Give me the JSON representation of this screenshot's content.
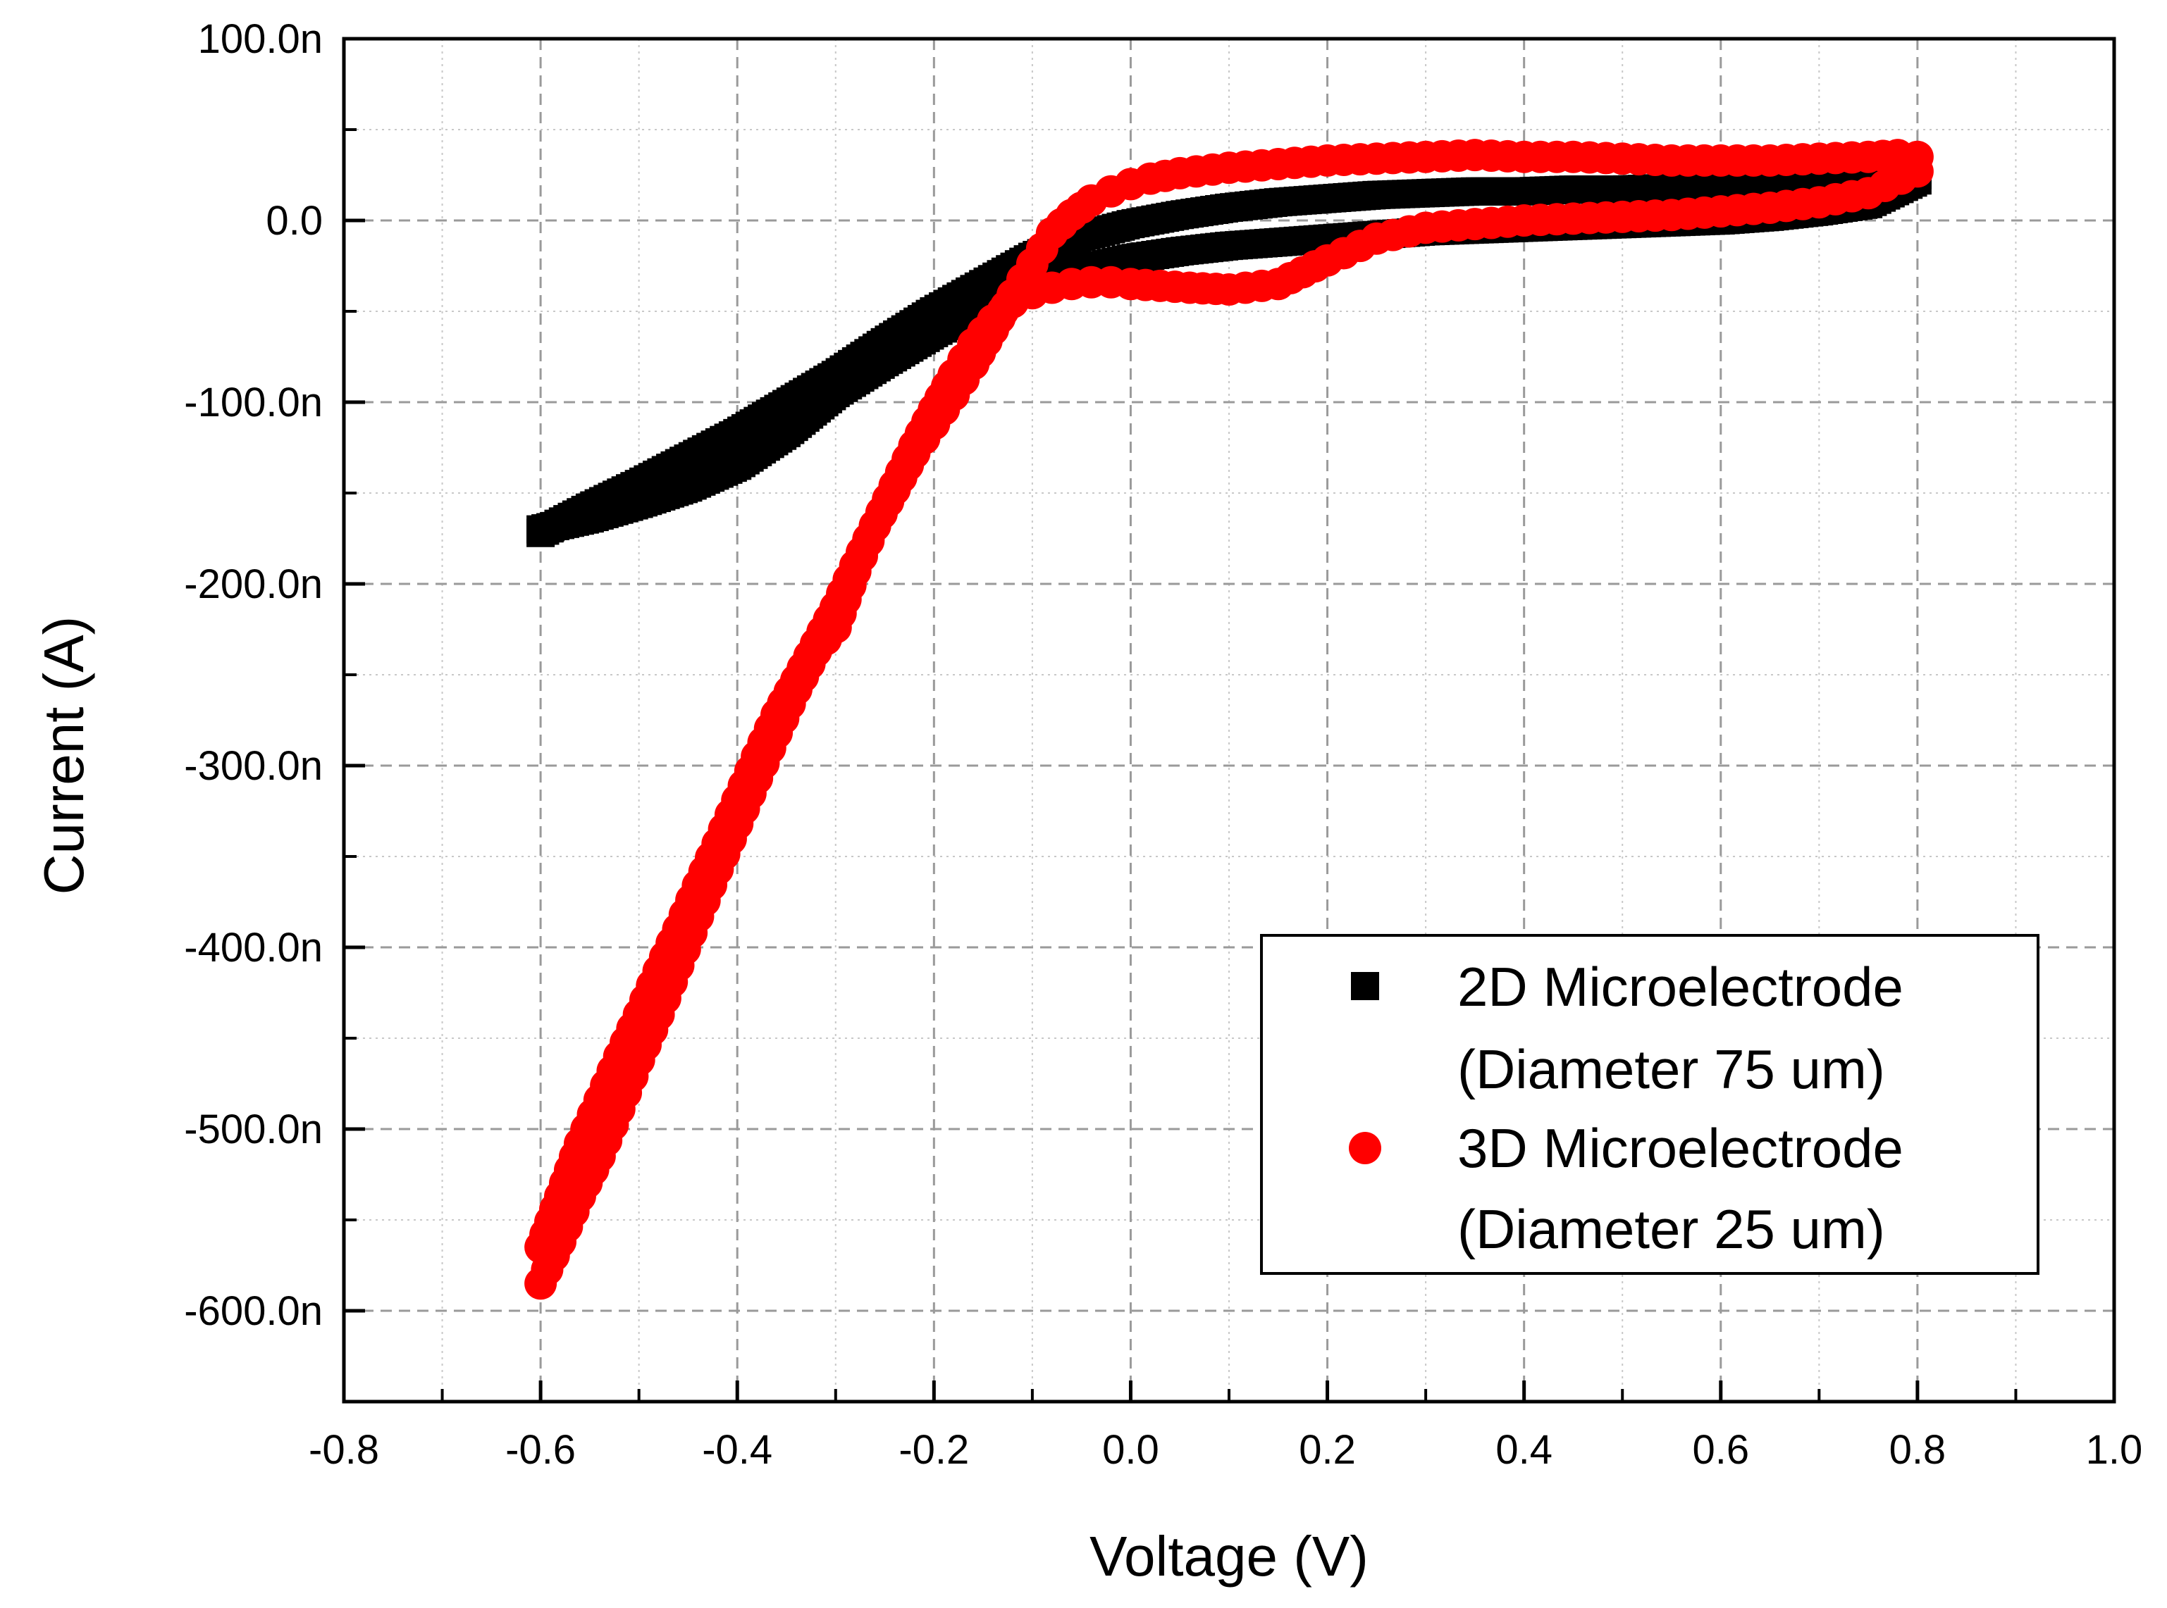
{
  "chart_data": {
    "type": "scatter",
    "title": "",
    "xlabel": "Voltage (V)",
    "ylabel": "Current (A)",
    "xlim": [
      -0.8,
      1.0
    ],
    "ylim": [
      -650,
      100
    ],
    "y_unit": "nA",
    "grid": true,
    "legend_position": "bottom-right",
    "x_ticks": [
      -0.8,
      -0.6,
      -0.4,
      -0.2,
      0.0,
      0.2,
      0.4,
      0.6,
      0.8,
      1.0
    ],
    "x_tick_labels": [
      "-0.8",
      "-0.6",
      "-0.4",
      "-0.2",
      "0.0",
      "0.2",
      "0.4",
      "0.6",
      "0.8",
      "1.0"
    ],
    "y_ticks": [
      100,
      0,
      -100,
      -200,
      -300,
      -400,
      -500,
      -600
    ],
    "y_tick_labels": [
      "100.0n",
      "0.0",
      "-100.0n",
      "-200.0n",
      "-300.0n",
      "-400.0n",
      "-500.0n",
      "-600.0n"
    ],
    "series": [
      {
        "name": "2D Microelectrode",
        "name_line2": "(Diameter 75 um)",
        "color": "#000000",
        "marker": "square",
        "x": [
          -0.6,
          -0.55,
          -0.5,
          -0.45,
          -0.4,
          -0.35,
          -0.3,
          -0.25,
          -0.2,
          -0.15,
          -0.1,
          -0.05,
          0.0,
          0.05,
          0.1,
          0.15,
          0.2,
          0.25,
          0.3,
          0.35,
          0.4,
          0.45,
          0.5,
          0.55,
          0.6,
          0.65,
          0.7,
          0.75,
          0.8,
          0.8,
          0.75,
          0.7,
          0.65,
          0.6,
          0.55,
          0.5,
          0.45,
          0.4,
          0.35,
          0.3,
          0.25,
          0.2,
          0.15,
          0.1,
          0.05,
          0.0,
          -0.05,
          -0.1,
          -0.15,
          -0.2,
          -0.25,
          -0.3,
          -0.35,
          -0.4,
          -0.45,
          -0.5,
          -0.55,
          -0.6
        ],
        "y": [
          -172,
          -158,
          -145,
          -131,
          -117,
          -101,
          -85,
          -67,
          -50,
          -35,
          -20,
          -9,
          -2,
          3,
          7,
          10,
          12,
          14,
          15,
          16,
          16,
          17,
          17,
          18,
          19,
          20,
          22,
          24,
          28,
          22,
          9,
          5,
          2,
          0,
          -1,
          -2,
          -3,
          -4,
          -5,
          -6,
          -8,
          -10,
          -12,
          -14,
          -17,
          -21,
          -27,
          -36,
          -48,
          -62,
          -78,
          -95,
          -117,
          -135,
          -147,
          -156,
          -164,
          -170
        ]
      },
      {
        "name": "3D Microelectrode",
        "name_line2": "(Diameter 25 um)",
        "color": "#ff0000",
        "marker": "circle",
        "x": [
          -0.6,
          -0.58,
          -0.56,
          -0.54,
          -0.52,
          -0.5,
          -0.48,
          -0.46,
          -0.44,
          -0.42,
          -0.4,
          -0.38,
          -0.36,
          -0.34,
          -0.32,
          -0.3,
          -0.28,
          -0.26,
          -0.24,
          -0.22,
          -0.2,
          -0.18,
          -0.16,
          -0.14,
          -0.12,
          -0.1,
          -0.08,
          -0.06,
          -0.04,
          -0.02,
          0.0,
          0.03,
          0.06,
          0.1,
          0.15,
          0.2,
          0.25,
          0.3,
          0.35,
          0.4,
          0.45,
          0.5,
          0.55,
          0.6,
          0.65,
          0.7,
          0.75,
          0.8,
          0.8,
          0.78,
          0.75,
          0.7,
          0.65,
          0.6,
          0.55,
          0.5,
          0.45,
          0.4,
          0.35,
          0.3,
          0.25,
          0.2,
          0.15,
          0.1,
          0.05,
          0.02,
          0.0,
          -0.02,
          -0.04,
          -0.06,
          -0.08,
          -0.1,
          -0.12,
          -0.14,
          -0.16,
          -0.18,
          -0.2,
          -0.22,
          -0.24,
          -0.26,
          -0.28,
          -0.3,
          -0.32,
          -0.34,
          -0.36,
          -0.38,
          -0.4,
          -0.42,
          -0.44,
          -0.46,
          -0.48,
          -0.5,
          -0.52,
          -0.54,
          -0.56,
          -0.58,
          -0.6
        ],
        "y": [
          -585,
          -562,
          -537,
          -515,
          -489,
          -462,
          -437,
          -410,
          -383,
          -357,
          -332,
          -307,
          -282,
          -258,
          -237,
          -224,
          -193,
          -168,
          -146,
          -124,
          -104,
          -85,
          -68,
          -55,
          -45,
          -40,
          -37,
          -35,
          -34,
          -34,
          -35,
          -36,
          -37,
          -38,
          -35,
          -22,
          -10,
          -4,
          -2,
          0,
          1,
          2,
          3,
          5,
          7,
          10,
          15,
          27,
          35,
          36,
          35,
          34,
          33,
          33,
          33,
          34,
          35,
          35,
          36,
          35,
          34,
          33,
          31,
          29,
          26,
          23,
          20,
          16,
          11,
          3,
          -7,
          -24,
          -41,
          -60,
          -79,
          -96,
          -112,
          -128,
          -148,
          -168,
          -190,
          -213,
          -233,
          -253,
          -272,
          -295,
          -319,
          -343,
          -366,
          -390,
          -413,
          -437,
          -460,
          -484,
          -508,
          -537,
          -565
        ]
      }
    ]
  }
}
